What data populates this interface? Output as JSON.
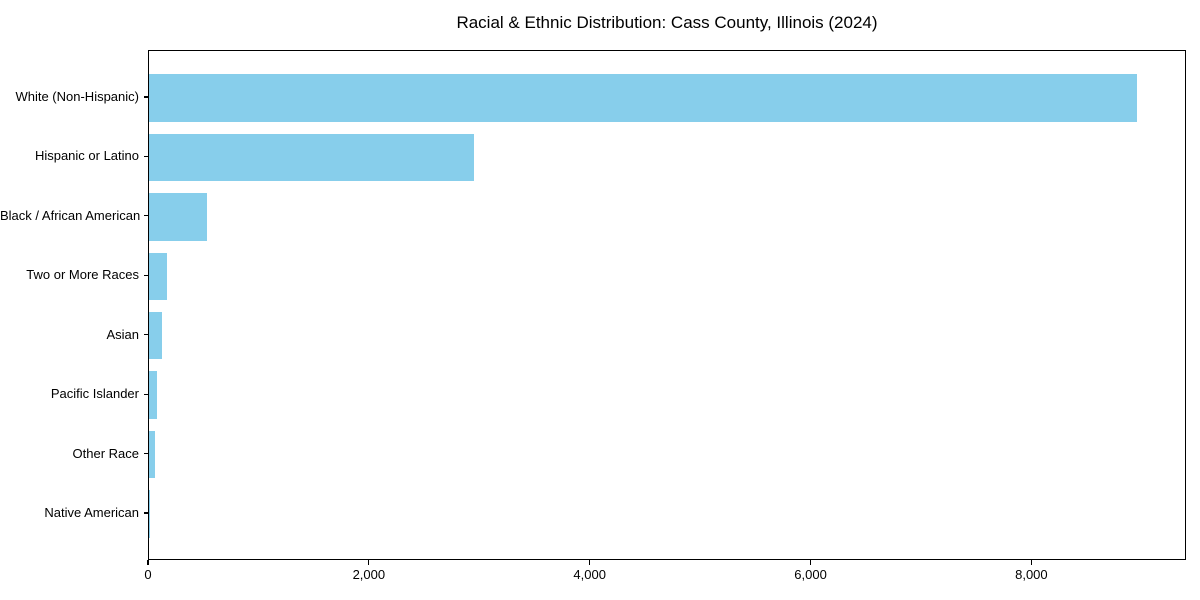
{
  "chart_data": {
    "type": "bar",
    "orientation": "horizontal",
    "title": "Racial & Ethnic Distribution: Cass County, Illinois (2024)",
    "categories": [
      "White (Non-Hispanic)",
      "Hispanic or Latino",
      "Black / African American",
      "Two or More Races",
      "Asian",
      "Pacific Islander",
      "Other Race",
      "Native American"
    ],
    "values": [
      8950,
      2940,
      525,
      165,
      120,
      75,
      55,
      10
    ],
    "bar_color": "#87CEEB",
    "axis_color": "#000000",
    "text_color": "#000000",
    "background_color": "#FFFFFF",
    "xlim": [
      0,
      9400
    ],
    "x_ticks": [
      {
        "value": 0,
        "label": "0"
      },
      {
        "value": 2000,
        "label": "2,000"
      },
      {
        "value": 4000,
        "label": "4,000"
      },
      {
        "value": 6000,
        "label": "6,000"
      },
      {
        "value": 8000,
        "label": "8,000"
      }
    ],
    "grid": false,
    "legend": false,
    "xlabel": "",
    "ylabel": ""
  }
}
